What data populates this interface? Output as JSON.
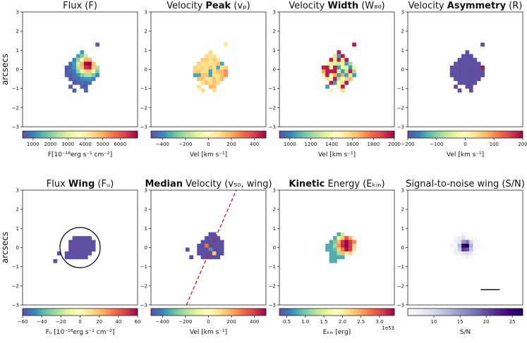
{
  "chart_data": {
    "type": "heatmap",
    "layout": "2 rows x 4 panels, each with a horizontal colorbar below",
    "y_axis_label": "arcsecs",
    "y_ticks": [
      "3",
      "2",
      "1",
      "0",
      "−1",
      "−2",
      "−3"
    ],
    "ylim": [
      -3,
      3
    ],
    "xlim": [
      -3,
      3
    ],
    "panels": [
      {
        "id": "flux",
        "title_plain": "Flux (F)",
        "title_bold": "",
        "title_rest": "",
        "cmap": "spectral",
        "clabel": "F[10⁻¹⁸erg s⁻¹ cm⁻²]",
        "cticks": [
          "1000",
          "2000",
          "3000",
          "4000",
          "5000",
          "6000"
        ],
        "crange": [
          400,
          7000
        ],
        "ctick_values": [
          1000,
          2000,
          3000,
          4000,
          5000,
          6000
        ],
        "show_ylabel": true,
        "map": "flux"
      },
      {
        "id": "vpeak",
        "title_plain": "Velocity ",
        "title_bold": "Peak",
        "title_rest": " (vₚ)",
        "cmap": "spectral",
        "clabel": "Vel [km s⁻¹]",
        "cticks": [
          "−400",
          "−200",
          "0",
          "200",
          "400"
        ],
        "crange": [
          -500,
          500
        ],
        "ctick_values": [
          -400,
          -200,
          0,
          200,
          400
        ],
        "show_ylabel": false,
        "map": "vpeak"
      },
      {
        "id": "w80",
        "title_plain": "Velocity ",
        "title_bold": "Width",
        "title_rest": " (W₈₀)",
        "cmap": "spectral",
        "clabel": "Vel [km s⁻¹]",
        "cticks": [
          "1000",
          "1200",
          "1400",
          "1600",
          "1800",
          "2000"
        ],
        "crange": [
          900,
          2000
        ],
        "ctick_values": [
          1000,
          1200,
          1400,
          1600,
          1800,
          2000
        ],
        "show_ylabel": false,
        "map": "w80"
      },
      {
        "id": "asym",
        "title_plain": "Velocity ",
        "title_bold": "Asymmetry",
        "title_rest": " (R)",
        "cmap": "spectral",
        "clabel": "Vel [km s⁻¹]",
        "cticks": [
          "−200",
          "−100",
          "0",
          "100",
          "200"
        ],
        "crange": [
          -200,
          200
        ],
        "ctick_values": [
          -200,
          -100,
          0,
          100,
          200
        ],
        "show_ylabel": false,
        "map": "asym"
      },
      {
        "id": "fwing",
        "title_plain": "Flux ",
        "title_bold": "Wing",
        "title_rest": " (Fᵤ)",
        "cmap": "spectral",
        "clabel": "Fᵤ [10⁻¹⁸erg s⁻¹ cm⁻²]",
        "cticks": [
          "−60",
          "−40",
          "−20",
          "0",
          "20",
          "40",
          "60"
        ],
        "crange": [
          -60,
          60
        ],
        "ctick_values": [
          -60,
          -40,
          -20,
          0,
          20,
          40,
          60
        ],
        "show_ylabel": true,
        "map": "fwing",
        "circle": {
          "cx": 0,
          "cy": 0,
          "r": 1.0
        }
      },
      {
        "id": "v50",
        "title_plain": "",
        "title_bold": "Median",
        "title_rest": " Velocity (v₅₀, wing)",
        "cmap": "spectral",
        "clabel": "Vel [km s⁻¹]",
        "cticks": [
          "−400",
          "−200",
          "0",
          "200",
          "400"
        ],
        "crange": [
          -500,
          500
        ],
        "ctick_values": [
          -400,
          -200,
          0,
          200,
          400
        ],
        "show_ylabel": false,
        "map": "v50",
        "line": {
          "x1": -1.15,
          "y1": -3,
          "x2": 1.45,
          "y2": 3
        }
      },
      {
        "id": "ekin",
        "title_plain": "",
        "title_bold": "Kinetic",
        "title_rest": " Energy (Eₖᵢₙ)",
        "cmap": "spectral",
        "clabel": "Eₖᵢₙ [erg]",
        "cticks": [
          "0.5",
          "1.0",
          "1.5",
          "2.0",
          "2.5",
          "3.0"
        ],
        "crange": [
          0.3,
          3.4
        ],
        "ctick_values": [
          0.5,
          1.0,
          1.5,
          2.0,
          2.5,
          3.0
        ],
        "coffset": "1e53",
        "show_ylabel": false,
        "map": "ekin"
      },
      {
        "id": "snr",
        "title_plain": "Signal-to-noise wing (S/N)",
        "title_bold": "",
        "title_rest": "",
        "cmap": "purples",
        "clabel": "S/N",
        "cticks": [
          "10",
          "15",
          "20",
          "25"
        ],
        "crange": [
          5,
          27
        ],
        "ctick_values": [
          10,
          15,
          20,
          25
        ],
        "show_ylabel": false,
        "map": "snr",
        "scalebar": {
          "x1": 0.8,
          "x2": 1.8,
          "y": -2.2
        }
      }
    ]
  }
}
